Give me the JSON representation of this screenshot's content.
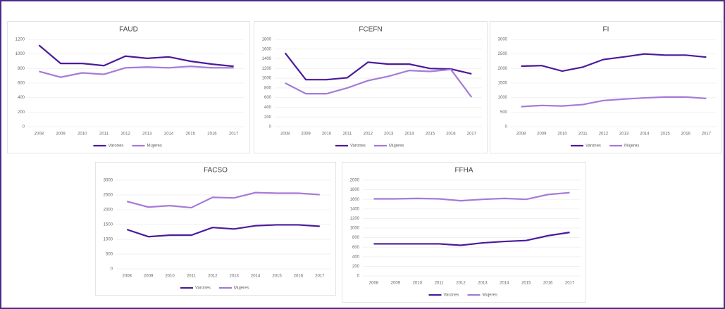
{
  "chart_data": [
    {
      "type": "line",
      "title": "FAUD",
      "categories": [
        "2008",
        "2009",
        "2010",
        "2011",
        "2012",
        "2013",
        "2014",
        "2015",
        "2016",
        "2017"
      ],
      "ylim": [
        0,
        1200
      ],
      "yticks": [
        0,
        200,
        400,
        600,
        800,
        1000,
        1200
      ],
      "series": [
        {
          "name": "Varones",
          "color": "#4b1a9a",
          "values": [
            1120,
            870,
            870,
            840,
            970,
            940,
            960,
            900,
            860,
            830
          ]
        },
        {
          "name": "Mujeres",
          "color": "#a57ad8",
          "values": [
            760,
            680,
            740,
            720,
            810,
            820,
            810,
            830,
            810,
            810
          ]
        }
      ]
    },
    {
      "type": "line",
      "title": "FCEFN",
      "categories": [
        "2008",
        "2009",
        "2010",
        "2011",
        "2012",
        "2013",
        "2014",
        "2015",
        "2016",
        "2017"
      ],
      "ylim": [
        0,
        1800
      ],
      "yticks": [
        0,
        200,
        400,
        600,
        800,
        1000,
        1200,
        1400,
        1600,
        1800
      ],
      "series": [
        {
          "name": "Varones",
          "color": "#4b1a9a",
          "values": [
            1520,
            970,
            970,
            1010,
            1330,
            1290,
            1290,
            1200,
            1190,
            1090
          ]
        },
        {
          "name": "Mujeres",
          "color": "#a57ad8",
          "values": [
            900,
            680,
            680,
            800,
            950,
            1040,
            1160,
            1140,
            1180,
            610
          ]
        }
      ]
    },
    {
      "type": "line",
      "title": "FI",
      "categories": [
        "2008",
        "2009",
        "2010",
        "2011",
        "2012",
        "2013",
        "2014",
        "2015",
        "2016",
        "2017"
      ],
      "ylim": [
        0,
        3000
      ],
      "yticks": [
        0,
        500,
        1000,
        1500,
        2000,
        2500,
        3000
      ],
      "series": [
        {
          "name": "Varones",
          "color": "#4b1a9a",
          "values": [
            2080,
            2100,
            1910,
            2050,
            2310,
            2400,
            2500,
            2460,
            2460,
            2390
          ]
        },
        {
          "name": "Mujeres",
          "color": "#a57ad8",
          "values": [
            690,
            730,
            710,
            760,
            900,
            950,
            990,
            1020,
            1020,
            970
          ]
        }
      ]
    },
    {
      "type": "line",
      "title": "FACSO",
      "categories": [
        "2008",
        "2009",
        "2010",
        "2011",
        "2012",
        "2013",
        "2014",
        "2015",
        "2016",
        "2017"
      ],
      "ylim": [
        0,
        3000
      ],
      "yticks": [
        0,
        500,
        1000,
        1500,
        2000,
        2500,
        3000
      ],
      "series": [
        {
          "name": "Varones",
          "color": "#4b1a9a",
          "values": [
            1330,
            1090,
            1140,
            1140,
            1400,
            1350,
            1460,
            1490,
            1490,
            1440
          ]
        },
        {
          "name": "Mujeres",
          "color": "#a57ad8",
          "values": [
            2280,
            2090,
            2140,
            2070,
            2420,
            2400,
            2580,
            2560,
            2560,
            2510
          ]
        }
      ]
    },
    {
      "type": "line",
      "title": "FFHA",
      "categories": [
        "2008",
        "2009",
        "2010",
        "2011",
        "2012",
        "2013",
        "2014",
        "2015",
        "2016",
        "2017"
      ],
      "ylim": [
        0,
        2000
      ],
      "yticks": [
        0,
        200,
        400,
        600,
        800,
        1000,
        1200,
        1400,
        1600,
        1800,
        2000
      ],
      "series": [
        {
          "name": "Varones",
          "color": "#4b1a9a",
          "values": [
            670,
            670,
            670,
            670,
            640,
            690,
            720,
            740,
            840,
            910
          ]
        },
        {
          "name": "Mujeres",
          "color": "#a57ad8",
          "values": [
            1610,
            1610,
            1620,
            1610,
            1570,
            1600,
            1620,
            1600,
            1700,
            1740
          ]
        }
      ]
    }
  ]
}
